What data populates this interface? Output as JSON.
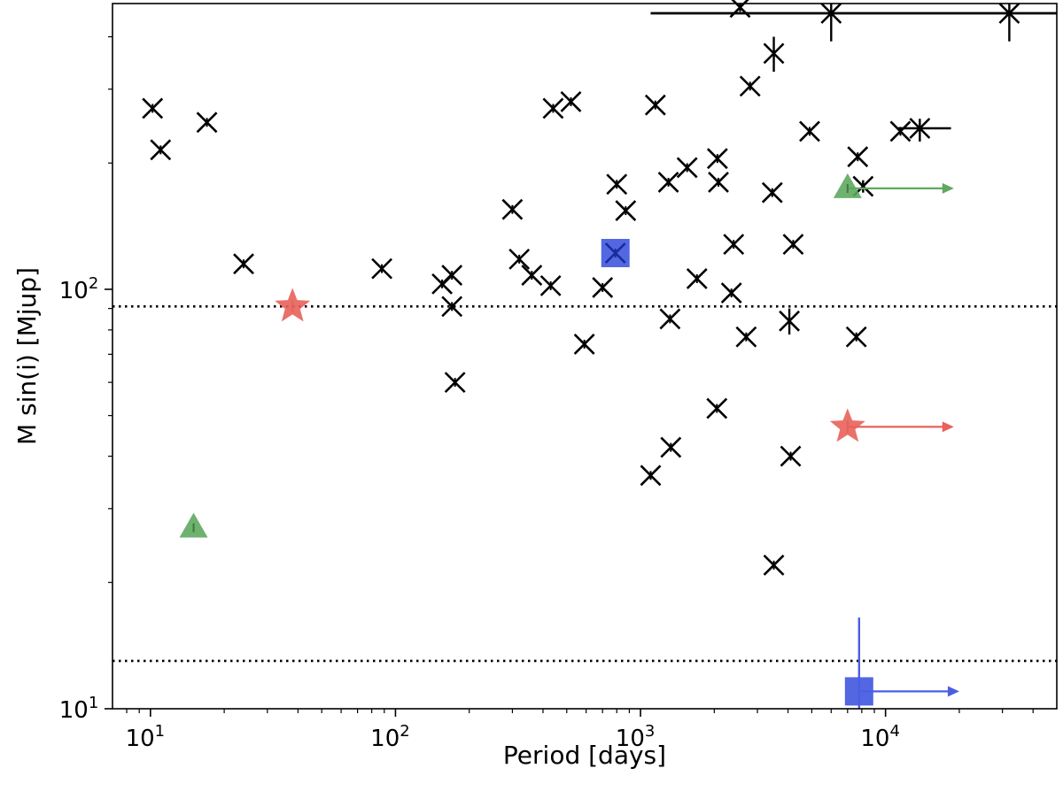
{
  "chart_data": {
    "type": "scatter",
    "title": "",
    "xlabel": "Period [days]",
    "ylabel": "M sin(i) [Mjup]",
    "xscale": "log",
    "yscale": "log",
    "xlim": [
      7,
      50000
    ],
    "ylim": [
      10,
      480
    ],
    "x_ticks": [
      {
        "value": 10,
        "label": "10",
        "exp": "1"
      },
      {
        "value": 100,
        "label": "10",
        "exp": "2"
      },
      {
        "value": 1000,
        "label": "10",
        "exp": "3"
      },
      {
        "value": 10000,
        "label": "10",
        "exp": "4"
      }
    ],
    "y_ticks": [
      {
        "value": 10,
        "label": "10",
        "exp": "1"
      },
      {
        "value": 100,
        "label": "10",
        "exp": "2"
      }
    ],
    "reference_lines": [
      {
        "name": "upper-dotted-line",
        "y": 91,
        "style": "dotted"
      },
      {
        "name": "lower-dotted-line",
        "y": 13,
        "style": "dotted"
      }
    ],
    "series": [
      {
        "name": "crosses",
        "marker": "x",
        "color": "#000000",
        "points": [
          [
            10.2,
            270
          ],
          [
            11,
            215
          ],
          [
            17,
            250
          ],
          [
            24,
            115
          ],
          [
            88,
            112
          ],
          [
            155,
            103
          ],
          [
            170,
            108
          ],
          [
            170,
            91
          ],
          [
            175,
            60
          ],
          [
            300,
            155
          ],
          [
            320,
            118
          ],
          [
            360,
            108
          ],
          [
            430,
            102
          ],
          [
            440,
            270
          ],
          [
            520,
            280
          ],
          [
            590,
            74
          ],
          [
            700,
            101
          ],
          [
            800,
            178
          ],
          [
            870,
            154
          ],
          [
            1100,
            36
          ],
          [
            1150,
            275
          ],
          [
            1300,
            180
          ],
          [
            1320,
            85
          ],
          [
            1330,
            42
          ],
          [
            1550,
            195
          ],
          [
            1700,
            106
          ],
          [
            2050,
            52
          ],
          [
            2060,
            205
          ],
          [
            2080,
            180
          ],
          [
            2350,
            98
          ],
          [
            2400,
            128
          ],
          [
            2550,
            470
          ],
          [
            2700,
            77
          ],
          [
            2800,
            305
          ],
          [
            3450,
            170
          ],
          [
            3500,
            22
          ],
          [
            4100,
            40
          ],
          [
            4200,
            128
          ],
          [
            4900,
            238
          ],
          [
            7600,
            77
          ],
          [
            7700,
            207
          ],
          [
            11500,
            238
          ]
        ]
      },
      {
        "name": "crosses-with-errors",
        "marker": "x",
        "color": "#000000",
        "points": [
          {
            "x": 3500,
            "y": 365,
            "yerr": [
              330,
              400
            ]
          },
          {
            "x": 4050,
            "y": 84,
            "yerr": [
              78,
              90
            ]
          },
          {
            "x": 6000,
            "y": 455,
            "xerr": [
              1100,
              50000
            ],
            "yerr": [
              390,
              500
            ]
          },
          {
            "x": 8100,
            "y": 176,
            "yerr": [
              170,
              182
            ]
          },
          {
            "x": 13800,
            "y": 242,
            "xerr": [
              11200,
              18500
            ],
            "yerr": [
              225,
              255
            ]
          },
          {
            "x": 32000,
            "y": 455,
            "xerr": [
              1100,
              50000
            ],
            "yerr": [
              390,
              500
            ]
          }
        ]
      },
      {
        "name": "red-stars",
        "marker": "star",
        "color": "#e8615a",
        "points": [
          {
            "x": 38,
            "y": 91
          },
          {
            "x": 7000,
            "y": 47,
            "lower_limit_to": 19000
          }
        ]
      },
      {
        "name": "green-triangles",
        "marker": "triangle",
        "color": "#5fa85f",
        "points": [
          {
            "x": 15,
            "y": 27
          },
          {
            "x": 7000,
            "y": 174,
            "lower_limit_to": 19000
          }
        ]
      },
      {
        "name": "blue-squares",
        "marker": "square",
        "color": "#4a5fe0",
        "points": [
          {
            "x": 790,
            "y": 122
          },
          {
            "x": 7800,
            "y": 11,
            "yerr": [
              10,
              16.5
            ],
            "lower_limit_to": 20000
          }
        ]
      }
    ]
  }
}
